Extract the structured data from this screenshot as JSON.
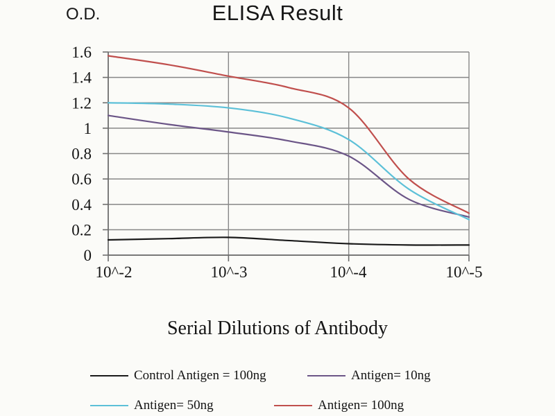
{
  "chart_data": {
    "type": "line",
    "title": "ELISA Result",
    "ylabel": "O.D.",
    "xlabel": "Serial Dilutions of Antibody",
    "categories": [
      "10^-2",
      "10^-3",
      "10^-4",
      "10^-5"
    ],
    "y_tick_labels": [
      "0",
      "0.2",
      "0.4",
      "0.6",
      "0.8",
      "1",
      "1.2",
      "1.4",
      "1.6"
    ],
    "ylim": [
      0,
      1.6
    ],
    "grid": true,
    "legend_position": "bottom",
    "axis_color": "#6e6e6e",
    "grid_color": "#878787",
    "x_samples_decades": [
      0,
      0.5,
      1,
      1.5,
      2,
      2.5,
      3
    ],
    "series": [
      {
        "name": "Control Antigen = 100ng",
        "color": "#1a1a1a",
        "values": [
          0.12,
          0.14,
          0.09,
          0.08
        ],
        "curve_values": [
          0.12,
          0.13,
          0.14,
          0.115,
          0.09,
          0.08,
          0.08
        ]
      },
      {
        "name": "Antigen= 10ng",
        "color": "#6b5587",
        "values": [
          1.1,
          0.97,
          0.78,
          0.3
        ],
        "curve_values": [
          1.1,
          1.03,
          0.97,
          0.9,
          0.78,
          0.44,
          0.3
        ]
      },
      {
        "name": "Antigen= 50ng",
        "color": "#5cc0d8",
        "values": [
          1.2,
          1.16,
          0.91,
          0.28
        ],
        "curve_values": [
          1.2,
          1.19,
          1.16,
          1.08,
          0.91,
          0.52,
          0.28
        ]
      },
      {
        "name": "Antigen= 100ng",
        "color": "#c04f4d",
        "values": [
          1.57,
          1.41,
          1.16,
          0.33
        ],
        "curve_values": [
          1.57,
          1.5,
          1.41,
          1.32,
          1.16,
          0.6,
          0.33
        ]
      }
    ]
  }
}
